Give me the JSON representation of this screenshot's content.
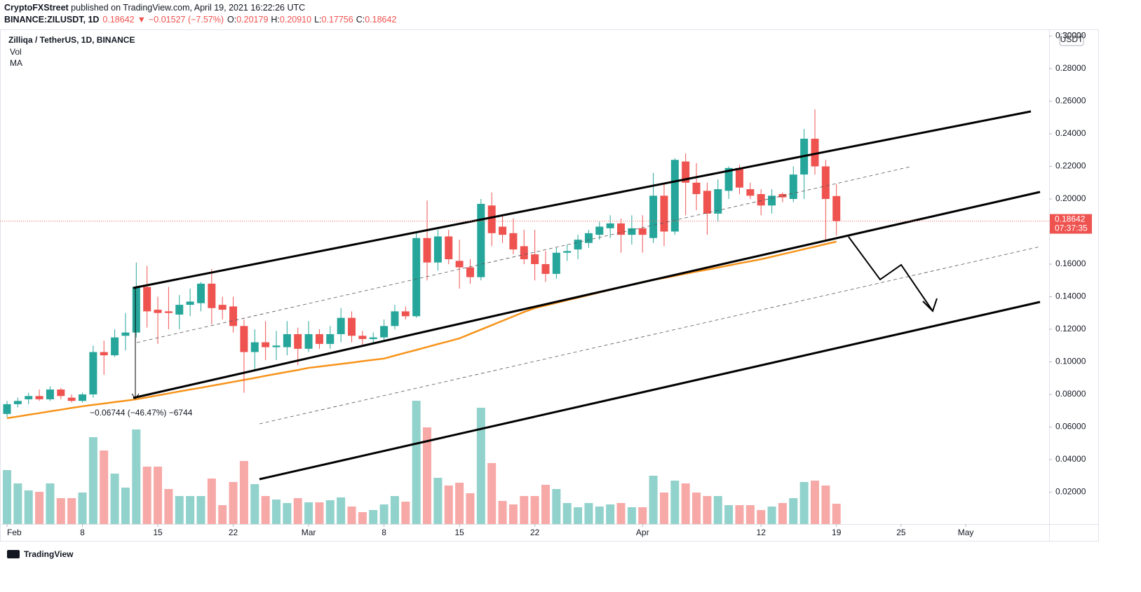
{
  "header": {
    "author": "CryptoFXStreet",
    "published": " published on TradingView.com, April 19, 2021 16:22:26 UTC",
    "symbol": "BINANCE:ZILUSDT, 1D",
    "last": "0.18642",
    "arrow": "▼",
    "change": "−0.01527 (−7.57%)",
    "o_label": "O:",
    "o": "0.20179",
    "h_label": "H:",
    "h": "0.20910",
    "l_label": "L:",
    "l": "0.17756",
    "c_label": "C:",
    "c": "0.18642"
  },
  "legend": {
    "title": "Zilliqa / TetherUS, 1D, BINANCE",
    "vol": "Vol",
    "ma": "MA"
  },
  "currency": "USDT",
  "countdown": "07:37:35",
  "measure": "−0.06744 (−46.47%) −6744",
  "brand": "TradingView",
  "chart_data": {
    "type": "candlestick",
    "x": [
      "2021-02-01",
      "2021-02-02",
      "2021-02-03",
      "2021-02-04",
      "2021-02-05",
      "2021-02-06",
      "2021-02-07",
      "2021-02-08",
      "2021-02-09",
      "2021-02-10",
      "2021-02-11",
      "2021-02-12",
      "2021-02-13",
      "2021-02-14",
      "2021-02-15",
      "2021-02-16",
      "2021-02-17",
      "2021-02-18",
      "2021-02-19",
      "2021-02-20",
      "2021-02-21",
      "2021-02-22",
      "2021-02-23",
      "2021-02-24",
      "2021-02-25",
      "2021-02-26",
      "2021-02-27",
      "2021-02-28",
      "2021-03-01",
      "2021-03-02",
      "2021-03-03",
      "2021-03-04",
      "2021-03-05",
      "2021-03-06",
      "2021-03-07",
      "2021-03-08",
      "2021-03-09",
      "2021-03-10",
      "2021-03-11",
      "2021-03-12",
      "2021-03-13",
      "2021-03-14",
      "2021-03-15",
      "2021-03-16",
      "2021-03-17",
      "2021-03-18",
      "2021-03-19",
      "2021-03-20",
      "2021-03-21",
      "2021-03-22",
      "2021-03-23",
      "2021-03-24",
      "2021-03-25",
      "2021-03-26",
      "2021-03-27",
      "2021-03-28",
      "2021-03-29",
      "2021-03-30",
      "2021-03-31",
      "2021-04-01",
      "2021-04-02",
      "2021-04-03",
      "2021-04-04",
      "2021-04-05",
      "2021-04-06",
      "2021-04-07",
      "2021-04-08",
      "2021-04-09",
      "2021-04-10",
      "2021-04-11",
      "2021-04-12",
      "2021-04-13",
      "2021-04-14",
      "2021-04-15",
      "2021-04-16",
      "2021-04-17",
      "2021-04-18",
      "2021-04-19"
    ],
    "open": [
      0.068,
      0.074,
      0.077,
      0.079,
      0.077,
      0.083,
      0.078,
      0.076,
      0.08,
      0.106,
      0.104,
      0.116,
      0.118,
      0.146,
      0.132,
      0.131,
      0.129,
      0.135,
      0.136,
      0.148,
      0.135,
      0.134,
      0.122,
      0.106,
      0.112,
      0.109,
      0.109,
      0.117,
      0.108,
      0.117,
      0.111,
      0.117,
      0.127,
      0.116,
      0.114,
      0.115,
      0.122,
      0.131,
      0.128,
      0.176,
      0.161,
      0.177,
      0.162,
      0.158,
      0.152,
      0.196,
      0.183,
      0.179,
      0.171,
      0.166,
      0.16,
      0.154,
      0.167,
      0.169,
      0.173,
      0.178,
      0.182,
      0.185,
      0.178,
      0.182,
      0.176,
      0.202,
      0.18,
      0.223,
      0.21,
      0.205,
      0.191,
      0.205,
      0.219,
      0.206,
      0.203,
      0.196,
      0.203,
      0.2,
      0.215,
      0.237,
      0.22,
      0.20179
    ],
    "high": [
      0.076,
      0.078,
      0.081,
      0.083,
      0.085,
      0.084,
      0.08,
      0.081,
      0.11,
      0.113,
      0.12,
      0.13,
      0.161,
      0.159,
      0.14,
      0.146,
      0.141,
      0.145,
      0.149,
      0.157,
      0.14,
      0.14,
      0.126,
      0.12,
      0.125,
      0.119,
      0.125,
      0.121,
      0.125,
      0.12,
      0.122,
      0.133,
      0.131,
      0.119,
      0.118,
      0.126,
      0.135,
      0.134,
      0.18,
      0.199,
      0.181,
      0.181,
      0.175,
      0.163,
      0.2,
      0.204,
      0.19,
      0.188,
      0.181,
      0.181,
      0.168,
      0.17,
      0.172,
      0.178,
      0.181,
      0.186,
      0.19,
      0.188,
      0.19,
      0.19,
      0.216,
      0.21,
      0.225,
      0.228,
      0.222,
      0.21,
      0.212,
      0.22,
      0.221,
      0.21,
      0.206,
      0.206,
      0.204,
      0.22,
      0.243,
      0.255,
      0.224,
      0.2091
    ],
    "low": [
      0.066,
      0.072,
      0.074,
      0.076,
      0.076,
      0.077,
      0.075,
      0.075,
      0.078,
      0.092,
      0.103,
      0.107,
      0.115,
      0.121,
      0.111,
      0.12,
      0.12,
      0.128,
      0.131,
      0.123,
      0.126,
      0.118,
      0.081,
      0.095,
      0.101,
      0.101,
      0.104,
      0.098,
      0.106,
      0.108,
      0.108,
      0.112,
      0.112,
      0.11,
      0.111,
      0.113,
      0.12,
      0.126,
      0.127,
      0.15,
      0.156,
      0.16,
      0.145,
      0.148,
      0.15,
      0.171,
      0.173,
      0.166,
      0.16,
      0.15,
      0.149,
      0.151,
      0.162,
      0.163,
      0.17,
      0.175,
      0.176,
      0.167,
      0.172,
      0.167,
      0.173,
      0.171,
      0.178,
      0.19,
      0.193,
      0.178,
      0.186,
      0.2,
      0.203,
      0.2,
      0.19,
      0.191,
      0.198,
      0.198,
      0.2,
      0.215,
      0.175,
      0.17756
    ],
    "close": [
      0.074,
      0.076,
      0.079,
      0.077,
      0.083,
      0.079,
      0.076,
      0.08,
      0.106,
      0.104,
      0.115,
      0.118,
      0.146,
      0.131,
      0.13,
      0.13,
      0.135,
      0.137,
      0.148,
      0.133,
      0.132,
      0.122,
      0.106,
      0.112,
      0.109,
      0.11,
      0.117,
      0.108,
      0.117,
      0.111,
      0.117,
      0.127,
      0.116,
      0.114,
      0.115,
      0.122,
      0.131,
      0.128,
      0.176,
      0.161,
      0.177,
      0.163,
      0.158,
      0.152,
      0.197,
      0.179,
      0.178,
      0.169,
      0.163,
      0.16,
      0.154,
      0.167,
      0.168,
      0.175,
      0.179,
      0.183,
      0.185,
      0.178,
      0.182,
      0.178,
      0.202,
      0.18,
      0.224,
      0.21,
      0.203,
      0.191,
      0.206,
      0.219,
      0.207,
      0.202,
      0.196,
      0.202,
      0.201,
      0.215,
      0.237,
      0.22,
      0.2,
      0.18642
    ],
    "volume": [
      77,
      58,
      48,
      46,
      58,
      37,
      37,
      45,
      124,
      105,
      72,
      52,
      135,
      82,
      82,
      50,
      40,
      40,
      40,
      65,
      27,
      60,
      90,
      57,
      40,
      35,
      30,
      37,
      31,
      31,
      34,
      38,
      25,
      17,
      20,
      28,
      40,
      32,
      176,
      138,
      66,
      55,
      59,
      44,
      166,
      87,
      33,
      28,
      40,
      40,
      56,
      50,
      30,
      24,
      30,
      25,
      28,
      30,
      24,
      24,
      69,
      45,
      62,
      58,
      45,
      40,
      40,
      27,
      27,
      27,
      20,
      25,
      30,
      37,
      60,
      62,
      55,
      29
    ],
    "vlim": [
      0,
      200
    ],
    "ma": [
      0.0654,
      0.0664,
      0.0675,
      0.0685,
      0.0696,
      0.0706,
      0.0717,
      0.0727,
      0.0736,
      0.0744,
      0.0753,
      0.0761,
      0.077,
      0.0782,
      0.0794,
      0.0806,
      0.0818,
      0.083,
      0.0841,
      0.0853,
      0.0865,
      0.0877,
      0.0889,
      0.0901,
      0.0914,
      0.0926,
      0.0938,
      0.095,
      0.0963,
      0.0971,
      0.0979,
      0.0987,
      0.0995,
      0.1004,
      0.1012,
      0.102,
      0.1038,
      0.1056,
      0.1073,
      0.1091,
      0.1109,
      0.1126,
      0.1144,
      0.1171,
      0.1198,
      0.1225,
      0.1252,
      0.1279,
      0.1306,
      0.133,
      0.1346,
      0.1362,
      0.1378,
      0.1394,
      0.141,
      0.1426,
      0.1442,
      0.1458,
      0.1474,
      0.149,
      0.1503,
      0.1515,
      0.1528,
      0.1541,
      0.1554,
      0.1566,
      0.1579,
      0.1592,
      0.1605,
      0.1617,
      0.163,
      0.1645,
      0.1661,
      0.1676,
      0.1692,
      0.1707,
      0.1723,
      0.1738
    ],
    "up_color": "#26a69a",
    "down_color": "#ef5350",
    "vol_up_color": "#92d2cc",
    "vol_down_color": "#f7a9a7",
    "ma_color": "#f7931a",
    "ylim": [
      0.0004,
      0.3041
    ],
    "yticks": [
      {
        "value": 0.3,
        "label": "0.30000"
      },
      {
        "value": 0.28,
        "label": "0.28000"
      },
      {
        "value": 0.26,
        "label": "0.26000"
      },
      {
        "value": 0.24,
        "label": "0.24000"
      },
      {
        "value": 0.22,
        "label": "0.22000"
      },
      {
        "value": 0.2,
        "label": "0.20000"
      },
      {
        "value": 0.18,
        "label": "0.18000"
      },
      {
        "value": 0.16,
        "label": "0.16000"
      },
      {
        "value": 0.14,
        "label": "0.14000"
      },
      {
        "value": 0.12,
        "label": "0.12000"
      },
      {
        "value": 0.1,
        "label": "0.10000"
      },
      {
        "value": 0.08,
        "label": "0.08000"
      },
      {
        "value": 0.06,
        "label": "0.06000"
      },
      {
        "value": 0.04,
        "label": "0.04000"
      },
      {
        "value": 0.02,
        "label": "0.02000"
      }
    ],
    "xticks": [
      {
        "value": "2021-02-01",
        "label": "Feb"
      },
      {
        "value": "2021-02-08",
        "label": "8"
      },
      {
        "value": "2021-02-15",
        "label": "15"
      },
      {
        "value": "2021-02-22",
        "label": "22"
      },
      {
        "value": "2021-03-01",
        "label": "Mar"
      },
      {
        "value": "2021-03-08",
        "label": "8"
      },
      {
        "value": "2021-03-15",
        "label": "15"
      },
      {
        "value": "2021-03-22",
        "label": "22"
      },
      {
        "value": "2021-04-01",
        "label": "Apr"
      },
      {
        "value": "2021-04-12",
        "label": "12"
      },
      {
        "value": "2021-04-19",
        "label": "19"
      },
      {
        "value": "2021-04-25",
        "label": "25"
      },
      {
        "value": "2021-05-01",
        "label": "May"
      }
    ]
  }
}
